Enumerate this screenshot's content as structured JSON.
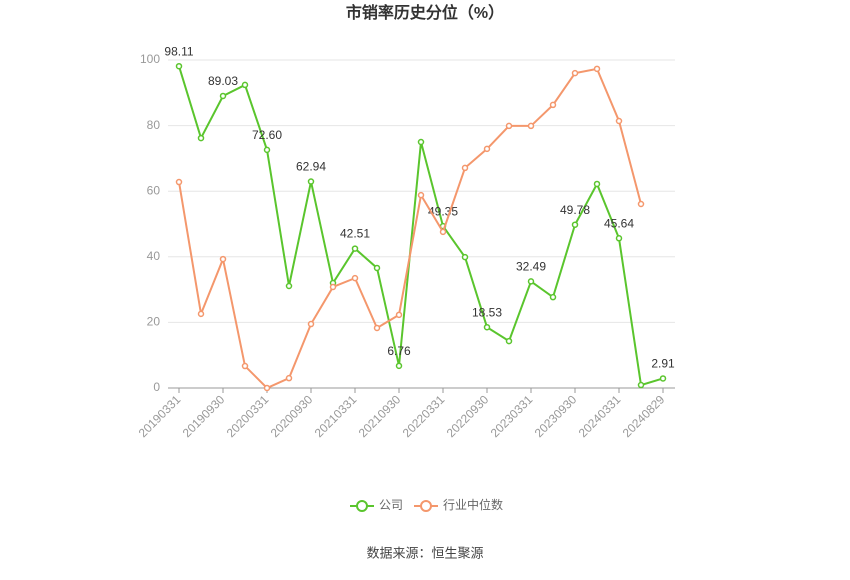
{
  "chart_data": {
    "type": "line",
    "title": "市销率历史分位（%）",
    "categories": [
      "20190331",
      null,
      "20190930",
      null,
      "20200331",
      null,
      "20200930",
      null,
      "20210331",
      null,
      "20210930",
      null,
      "20220331",
      null,
      "20220930",
      null,
      "20230331",
      null,
      "20230930",
      null,
      "20240331",
      null,
      "20240829"
    ],
    "series": [
      {
        "name": "公司",
        "color": "#5ac52d",
        "values": [
          98.11,
          76.2,
          89.03,
          92.4,
          72.6,
          31.1,
          62.94,
          32.0,
          42.51,
          36.6,
          6.76,
          75.0,
          49.35,
          39.9,
          18.53,
          14.3,
          32.49,
          27.7,
          49.78,
          62.2,
          45.64,
          0.9,
          2.91
        ],
        "value_labels": [
          "98.11",
          null,
          "89.03",
          null,
          "72.60",
          null,
          "62.94",
          null,
          "42.51",
          null,
          "6.76",
          null,
          "49.35",
          null,
          "18.53",
          null,
          "32.49",
          null,
          "49.78",
          null,
          "45.64",
          null,
          "2.91"
        ]
      },
      {
        "name": "行业中位数",
        "color": "#f4976c",
        "values": [
          62.8,
          22.6,
          39.3,
          6.7,
          0,
          3.0,
          19.5,
          30.8,
          33.5,
          18.3,
          22.3,
          58.8,
          47.6,
          67.1,
          72.9,
          79.9,
          79.9,
          86.3,
          96.0,
          97.3,
          81.4,
          56.1,
          null
        ]
      }
    ],
    "ylim": [
      0,
      100
    ],
    "yticks": [
      0,
      20,
      40,
      60,
      80,
      100
    ],
    "grid": true,
    "source": "数据来源：恒生聚源"
  }
}
